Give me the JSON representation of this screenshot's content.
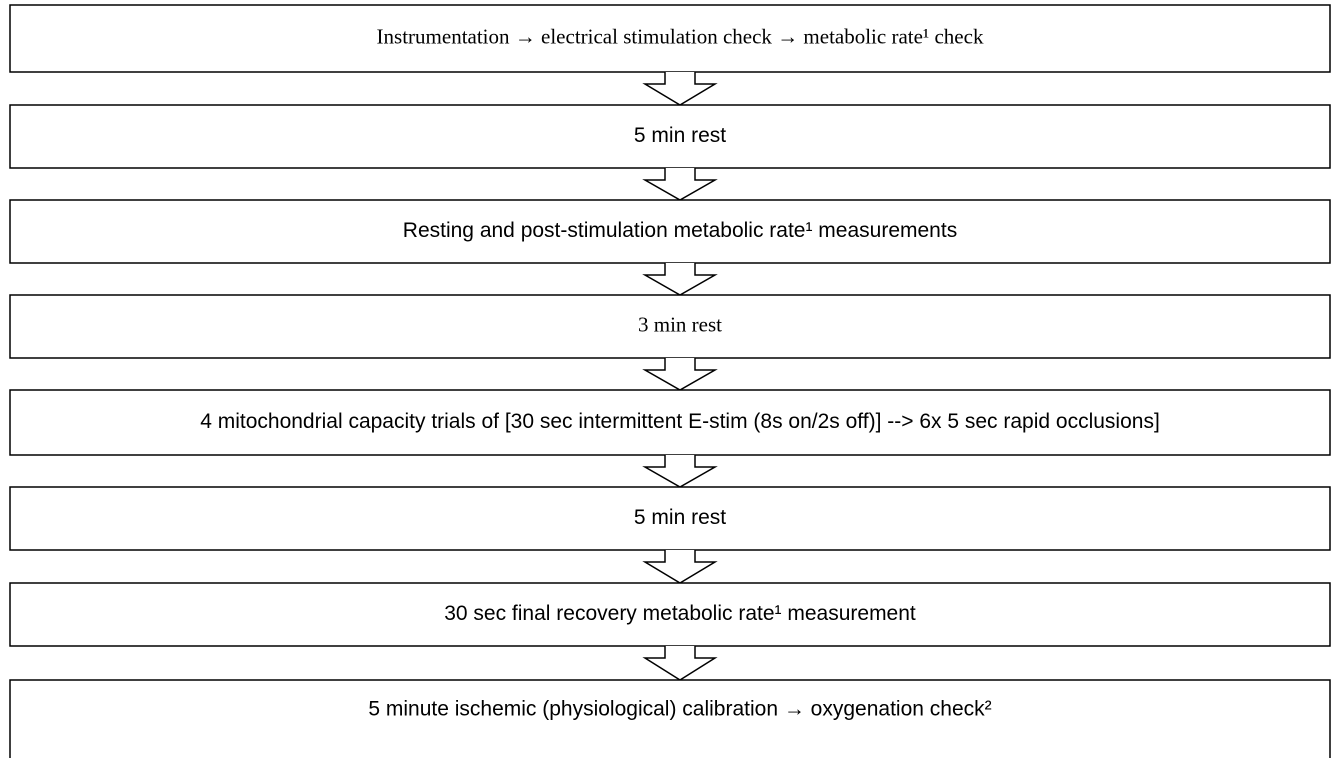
{
  "nodes": [
    {
      "label": "Instrumentation → electrical stimulation check → metabolic rate¹ check"
    },
    {
      "label": "5 min rest"
    },
    {
      "label": "Resting and post-stimulation metabolic rate¹ measurements"
    },
    {
      "label": "3 min rest"
    },
    {
      "label": "4 mitochondrial capacity trials  of [30 sec intermittent E-stim (8s on/2s off)] --> 6x 5 sec rapid occlusions]"
    },
    {
      "label": "5 min rest"
    },
    {
      "label": "30 sec final recovery metabolic rate¹ measurement"
    },
    {
      "label": "5 minute ischemic (physiological) calibration → oxygenation check²"
    }
  ]
}
